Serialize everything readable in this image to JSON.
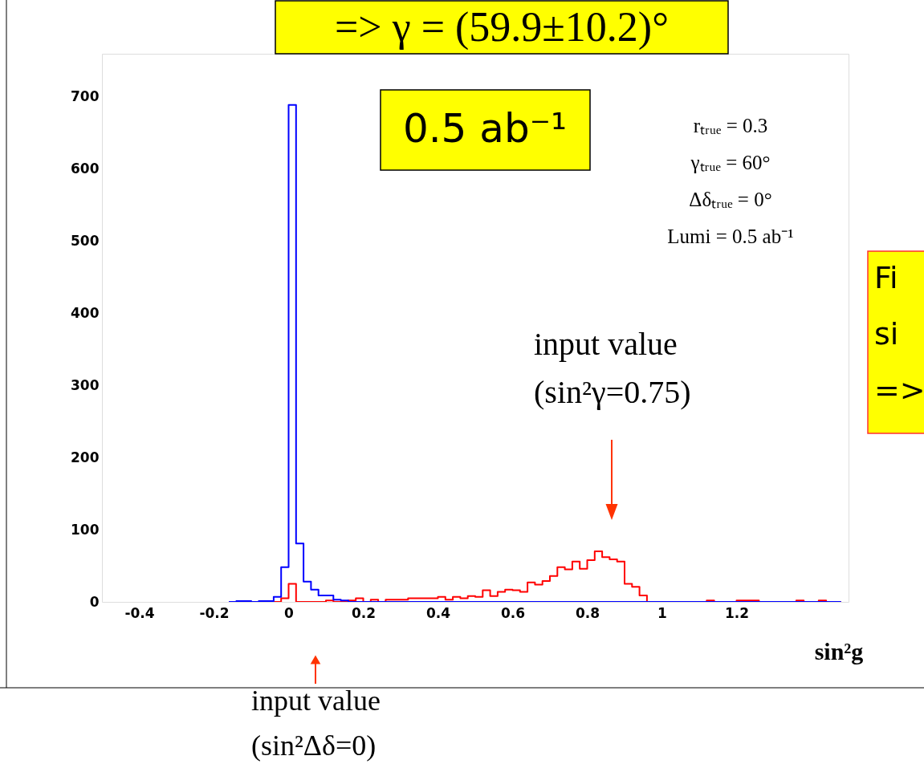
{
  "chart_data": {
    "type": "histogram",
    "title": "=> γ = (59.9±10.2)°",
    "xlabel": "sin²g",
    "bins": [
      -0.16,
      -0.14,
      -0.12,
      -0.1,
      -0.08,
      -0.06,
      -0.04,
      -0.02,
      0.0,
      0.02,
      0.04,
      0.06,
      0.08,
      0.1,
      0.12,
      0.14,
      0.16,
      0.18,
      0.2,
      0.22,
      0.24,
      0.26,
      0.28,
      0.3,
      0.32,
      0.34,
      0.36,
      0.38,
      0.4,
      0.42,
      0.44,
      0.46,
      0.48,
      0.5,
      0.52,
      0.54,
      0.56,
      0.58,
      0.6,
      0.62,
      0.64,
      0.66,
      0.68,
      0.7,
      0.72,
      0.74,
      0.76,
      0.78,
      0.8,
      0.82,
      0.84,
      0.86,
      0.88,
      0.9,
      0.92,
      0.94,
      0.96,
      0.98,
      1.0,
      1.02,
      1.04,
      1.06,
      1.08,
      1.1,
      1.12,
      1.14,
      1.16,
      1.18,
      1.2,
      1.22,
      1.24,
      1.26,
      1.28,
      1.3,
      1.32,
      1.34,
      1.36,
      1.38,
      1.4,
      1.42,
      1.44,
      1.46,
      1.48
    ],
    "series": [
      {
        "color": "#ff0000",
        "values": [
          0,
          0,
          0,
          0,
          0,
          0,
          0,
          5,
          25,
          0,
          0,
          0,
          0,
          2,
          0,
          0,
          2,
          5,
          0,
          3,
          0,
          3,
          3,
          3,
          5,
          5,
          5,
          5,
          7,
          3,
          7,
          5,
          8,
          7,
          16,
          8,
          14,
          17,
          16,
          14,
          27,
          24,
          29,
          36,
          48,
          45,
          56,
          46,
          58,
          70,
          62,
          59,
          56,
          25,
          21,
          9,
          0,
          0,
          0,
          0,
          0,
          0,
          0,
          0,
          2,
          0,
          0,
          0,
          2,
          2,
          2,
          0,
          0,
          0,
          0,
          0,
          2,
          0,
          0,
          2,
          0,
          0
        ]
      },
      {
        "color": "#0000ff",
        "values": [
          0,
          1,
          1,
          0,
          1,
          1,
          7,
          48,
          689,
          81,
          28,
          17,
          9,
          9,
          3,
          2,
          0,
          0,
          0,
          0,
          0,
          0,
          0,
          0,
          0,
          0,
          0,
          0,
          0,
          0,
          0,
          0,
          0,
          0,
          0,
          0,
          0,
          0,
          0,
          0,
          0,
          0,
          0,
          0,
          0,
          0,
          0,
          0,
          0,
          0,
          0,
          0,
          0,
          0,
          0,
          0,
          0,
          0,
          0,
          0,
          0,
          0,
          0,
          0,
          0,
          0,
          0,
          0,
          0,
          0,
          0,
          0,
          0,
          0,
          0,
          0,
          0,
          0,
          0,
          0,
          0,
          0
        ]
      }
    ],
    "xlim": [
      -0.5,
      1.5
    ],
    "ylim": [
      0,
      760
    ],
    "xticks": [
      -0.4,
      -0.2,
      0,
      0.2,
      0.4,
      0.6,
      0.8,
      1,
      1.2
    ],
    "yticks": [
      0,
      100,
      200,
      300,
      400,
      500,
      600,
      700
    ],
    "grid": false,
    "annotations": [
      "0.5 ab⁻¹",
      "rₜᵣᵤₑ = 0.3\nγₜᵣᵤₑ = 60°\nΔδₜᵣᵤₑ = 0°\nLumi = 0.5 ab⁻¹",
      "input value\n(sin²γ=0.75)",
      "input value\n(sin²Δδ=0)",
      "Fi\nsi\n=>"
    ]
  }
}
